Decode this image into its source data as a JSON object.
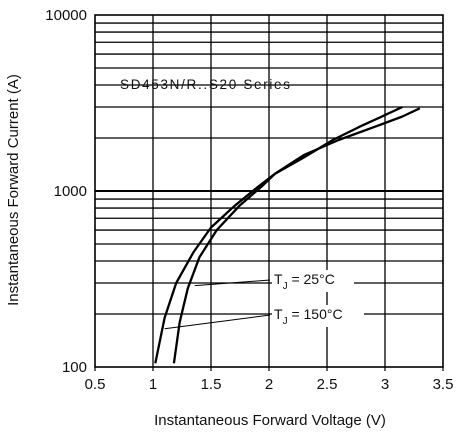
{
  "chart_data": {
    "type": "line",
    "title": "",
    "series_caption": "SD453N/R..S20 Series",
    "xlabel": "Instantaneous Forward Voltage (V)",
    "ylabel": "Instantaneous Forward Current (A)",
    "xlim": [
      0.5,
      3.5
    ],
    "ylim": [
      100,
      10000
    ],
    "y_scale": "log",
    "grid": "horizontal minor (log decades), vertical at 0.5 V steps",
    "legend": "none",
    "x_ticks": [
      "0.5",
      "1",
      "1.5",
      "2",
      "2.5",
      "3",
      "3.5"
    ],
    "y_ticks": [
      "100",
      "1000",
      "10000"
    ],
    "series": [
      {
        "name": "T_J = 25°C",
        "x": [
          1.02,
          1.1,
          1.2,
          1.35,
          1.5,
          1.7,
          1.9,
          2.05,
          2.3,
          2.55,
          2.8,
          3.0,
          3.15
        ],
        "y": [
          105,
          190,
          300,
          450,
          620,
          820,
          1050,
          1250,
          1550,
          1950,
          2350,
          2700,
          3000
        ]
      },
      {
        "name": "T_J = 150°C",
        "x": [
          1.18,
          1.23,
          1.3,
          1.4,
          1.55,
          1.75,
          1.95,
          2.05,
          2.3,
          2.6,
          2.9,
          3.15,
          3.3
        ],
        "y": [
          105,
          180,
          280,
          420,
          600,
          830,
          1080,
          1250,
          1600,
          1950,
          2300,
          2650,
          2950
        ]
      }
    ],
    "annotations": [
      {
        "prefix": "T",
        "sub": "J",
        "suffix": " = 25°C",
        "x": 1.35,
        "y": 300,
        "target_x": 1.36,
        "target_y": 290
      },
      {
        "prefix": "T",
        "sub": "J",
        "suffix": " = 150°C",
        "x": 1.1,
        "y": 180,
        "target_x": 1.1,
        "target_y": 165
      }
    ]
  }
}
